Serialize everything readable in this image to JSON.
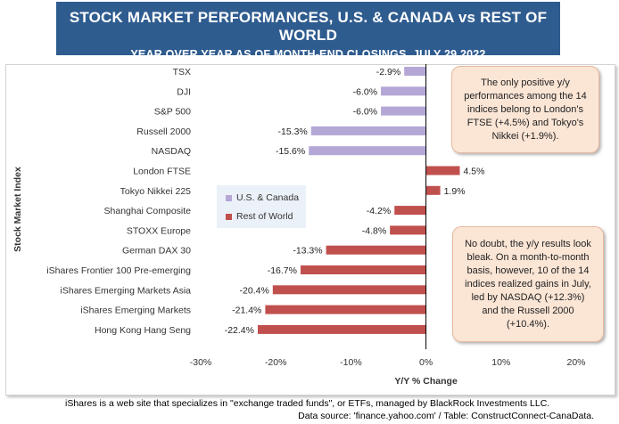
{
  "header": {
    "title": "STOCK MARKET PERFORMANCES, U.S. & CANADA vs REST OF WORLD",
    "subtitle": "YEAR OVER YEAR AS OF MONTH-END CLOSINGS, JULY 29 2022"
  },
  "chart_data": {
    "type": "bar",
    "orientation": "horizontal",
    "xlabel": "Y/Y % Change",
    "ylabel": "Stock Market Index",
    "xlim": [
      -30,
      20
    ],
    "xticks": [
      -30,
      -20,
      -10,
      0,
      10,
      20
    ],
    "xtick_labels": [
      "-30%",
      "-20%",
      "-10%",
      "0%",
      "10%",
      "20%"
    ],
    "categories": [
      "TSX",
      "DJI",
      "S&P 500",
      "Russell  2000",
      "NASDAQ",
      "London FTSE",
      "Tokyo Nikkei 225",
      "Shanghai Composite",
      "STOXX Europe",
      "German DAX 30",
      "iShares Frontier 100 Pre-emerging",
      "iShares Emerging Markets Asia",
      "iShares Emerging Markets",
      "Hong Kong Hang Seng"
    ],
    "values": [
      -2.9,
      -6.0,
      -6.0,
      -15.3,
      -15.6,
      4.5,
      1.9,
      -4.2,
      -4.8,
      -13.3,
      -16.7,
      -20.4,
      -21.4,
      -22.4
    ],
    "value_labels": [
      "-2.9%",
      "-6.0%",
      "-6.0%",
      "-15.3%",
      "-15.6%",
      "4.5%",
      "1.9%",
      "-4.2%",
      "-4.8%",
      "-13.3%",
      "-16.7%",
      "-20.4%",
      "-21.4%",
      "-22.4%"
    ],
    "groups": [
      "us_canada",
      "us_canada",
      "us_canada",
      "us_canada",
      "us_canada",
      "rest",
      "rest",
      "rest",
      "rest",
      "rest",
      "rest",
      "rest",
      "rest",
      "rest"
    ],
    "series": [
      {
        "key": "us_canada",
        "name": "U.S. & Canada",
        "color": "#b4a7d6"
      },
      {
        "key": "rest",
        "name": "Rest of World",
        "color": "#c0504d"
      }
    ],
    "grid": false,
    "legend_position": "center-left"
  },
  "annotations": {
    "callout_top": "The only positive y/y performances among the 14 indices belong to London's FTSE (+4.5%) and Tokyo's Nikkei (+1.9%).",
    "callout_bottom": "No doubt, the y/y results look bleak. On a month-to-month basis, however, 10 of the 14 indices realized gains in July, led by NASDAQ (+12.3%) and the Russell 2000 (+10.4%)."
  },
  "footer": {
    "note": "iShares is a web site that specializes in \"exchange traded funds\", or ETFs, managed by BlackRock Investments LLC.",
    "source": "Data source: 'finance.yahoo.com' / Table: ConstructConnect-CanaData."
  }
}
